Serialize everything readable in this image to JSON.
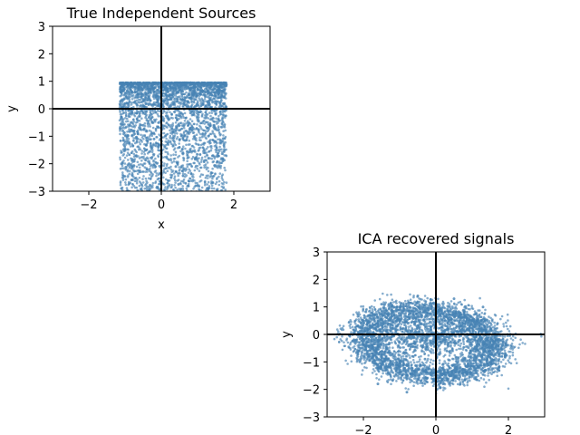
{
  "chart_data": [
    {
      "type": "scatter",
      "title": "True Independent Sources",
      "xlabel": "x",
      "ylabel": "y",
      "xlim": [
        -3,
        3
      ],
      "ylim": [
        -3,
        3
      ],
      "xticks": [
        "−2",
        "0",
        "2"
      ],
      "yticks": [
        "3",
        "2",
        "1",
        "0",
        "−1",
        "−2",
        "−3"
      ],
      "point_color": "#4682b4",
      "axis_lines": true,
      "grid": false,
      "distribution": "x uniform on [-1.15, 1.8], y bounded above at 0.95, dense near top with a long tail down past -3",
      "points": [
        {
          "x": -1.1,
          "y": 0.9
        },
        {
          "x": -0.6,
          "y": 0.85
        },
        {
          "x": 0.0,
          "y": 0.9
        },
        {
          "x": 0.6,
          "y": 0.88
        },
        {
          "x": 1.2,
          "y": 0.92
        },
        {
          "x": 1.75,
          "y": 0.9
        },
        {
          "x": -0.9,
          "y": 0.4
        },
        {
          "x": -0.3,
          "y": 0.3
        },
        {
          "x": 0.3,
          "y": 0.5
        },
        {
          "x": 1.0,
          "y": 0.2
        },
        {
          "x": 1.6,
          "y": 0.6
        },
        {
          "x": -1.1,
          "y": -0.3
        },
        {
          "x": -0.5,
          "y": -0.6
        },
        {
          "x": 0.2,
          "y": -0.4
        },
        {
          "x": 0.8,
          "y": -0.7
        },
        {
          "x": 1.5,
          "y": -0.2
        },
        {
          "x": -1.0,
          "y": -1.2
        },
        {
          "x": -0.2,
          "y": -1.1
        },
        {
          "x": 0.5,
          "y": -1.4
        },
        {
          "x": 1.3,
          "y": -1.0
        },
        {
          "x": -1.1,
          "y": -2.0
        },
        {
          "x": -0.6,
          "y": -2.3
        },
        {
          "x": 0.4,
          "y": -2.1
        },
        {
          "x": 1.7,
          "y": -1.9
        },
        {
          "x": -1.1,
          "y": -2.9
        }
      ]
    },
    {
      "type": "scatter",
      "title": "ICA recovered signals",
      "xlabel": "",
      "ylabel": "y",
      "xlim": [
        -3,
        3
      ],
      "ylim": [
        -3,
        3
      ],
      "xticks": [
        "−2",
        "0",
        "2"
      ],
      "yticks": [
        "3",
        "2",
        "1",
        "0",
        "−1",
        "−2",
        "−3"
      ],
      "point_color": "#4682b4",
      "axis_lines": true,
      "grid": false,
      "distribution": "tilted ring-shaped cloud centered near (-0.2, -0.3), radius about 1.8 in x and 1.2 in y, with a hole near (-0.7, 0.6)",
      "points": [
        {
          "x": -2.0,
          "y": 0.5
        },
        {
          "x": -1.5,
          "y": 1.1
        },
        {
          "x": -0.5,
          "y": 1.4
        },
        {
          "x": 0.5,
          "y": 1.3
        },
        {
          "x": 1.3,
          "y": 1.0
        },
        {
          "x": 1.7,
          "y": 0.4
        },
        {
          "x": 1.5,
          "y": -0.6
        },
        {
          "x": 1.0,
          "y": -1.4
        },
        {
          "x": 0.2,
          "y": -1.8
        },
        {
          "x": -0.8,
          "y": -2.1
        },
        {
          "x": -1.6,
          "y": -1.8
        },
        {
          "x": -2.1,
          "y": -1.0
        },
        {
          "x": -2.2,
          "y": -0.2
        },
        {
          "x": 0.0,
          "y": 0.0
        },
        {
          "x": 0.6,
          "y": 0.1
        },
        {
          "x": -1.2,
          "y": 0.2
        },
        {
          "x": 1.1,
          "y": 0.5
        },
        {
          "x": -0.3,
          "y": -0.9
        },
        {
          "x": 0.8,
          "y": -0.9
        },
        {
          "x": -1.4,
          "y": -1.2
        }
      ]
    }
  ]
}
